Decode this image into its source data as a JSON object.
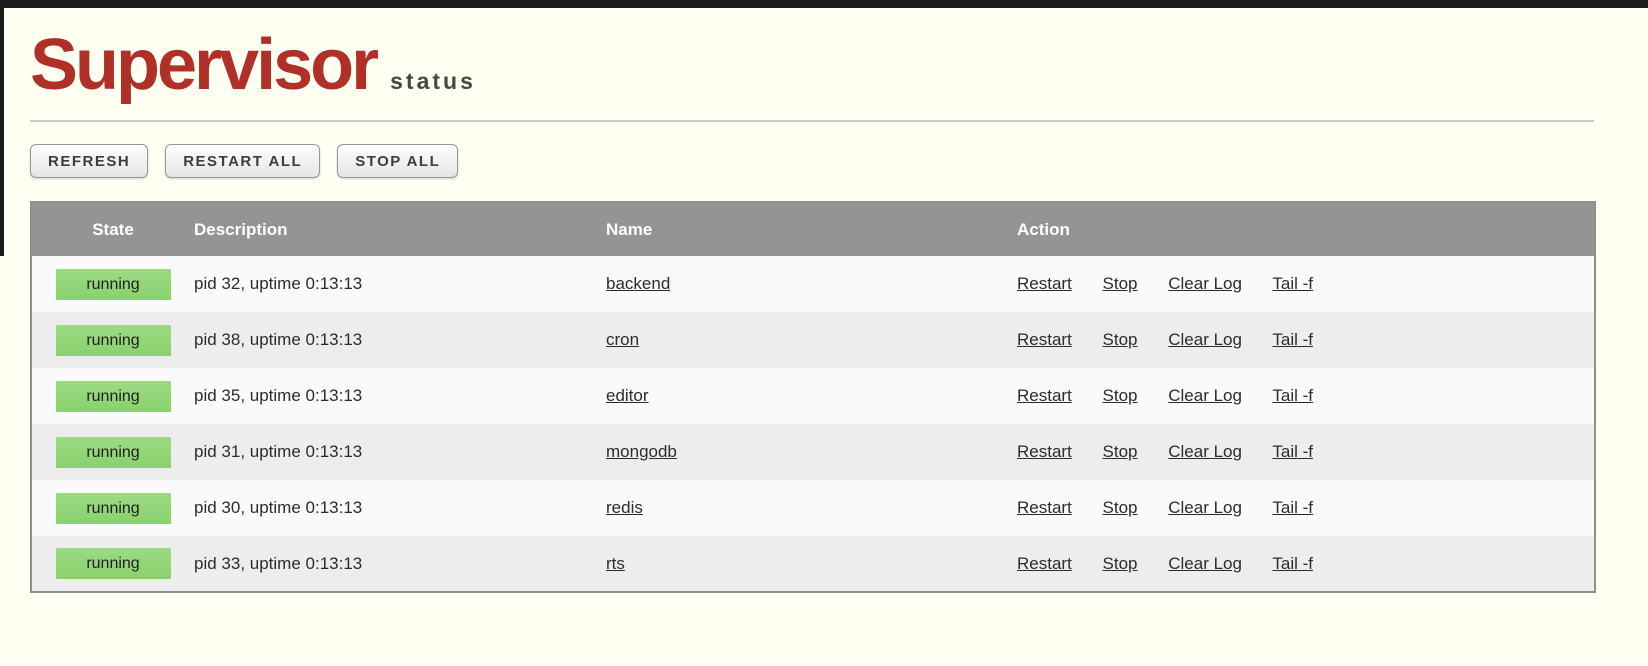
{
  "page": {
    "logo_title": "Supervisor",
    "logo_subtitle": "status"
  },
  "toolbar": {
    "buttons": [
      "REFRESH",
      "RESTART ALL",
      "STOP ALL"
    ]
  },
  "table": {
    "headers": [
      "State",
      "Description",
      "Name",
      "Action"
    ],
    "actions": [
      "Restart",
      "Stop",
      "Clear Log",
      "Tail -f"
    ],
    "rows": [
      {
        "state": "running",
        "description": "pid 32, uptime 0:13:13",
        "name": "backend"
      },
      {
        "state": "running",
        "description": "pid 38, uptime 0:13:13",
        "name": "cron"
      },
      {
        "state": "running",
        "description": "pid 35, uptime 0:13:13",
        "name": "editor"
      },
      {
        "state": "running",
        "description": "pid 31, uptime 0:13:13",
        "name": "mongodb"
      },
      {
        "state": "running",
        "description": "pid 30, uptime 0:13:13",
        "name": "redis"
      },
      {
        "state": "running",
        "description": "pid 33, uptime 0:13:13",
        "name": "rts"
      }
    ]
  },
  "colors": {
    "page_background": "#fffff2",
    "logo_red": "#b02f27",
    "subtitle_gray": "#474747",
    "table_header_gray": "#949494",
    "badge_green": "#8fd675",
    "row_light": "#fafafa",
    "row_dark": "#ededed",
    "table_border": "#8f8f8f",
    "edge_black": "#1c1c1c"
  }
}
